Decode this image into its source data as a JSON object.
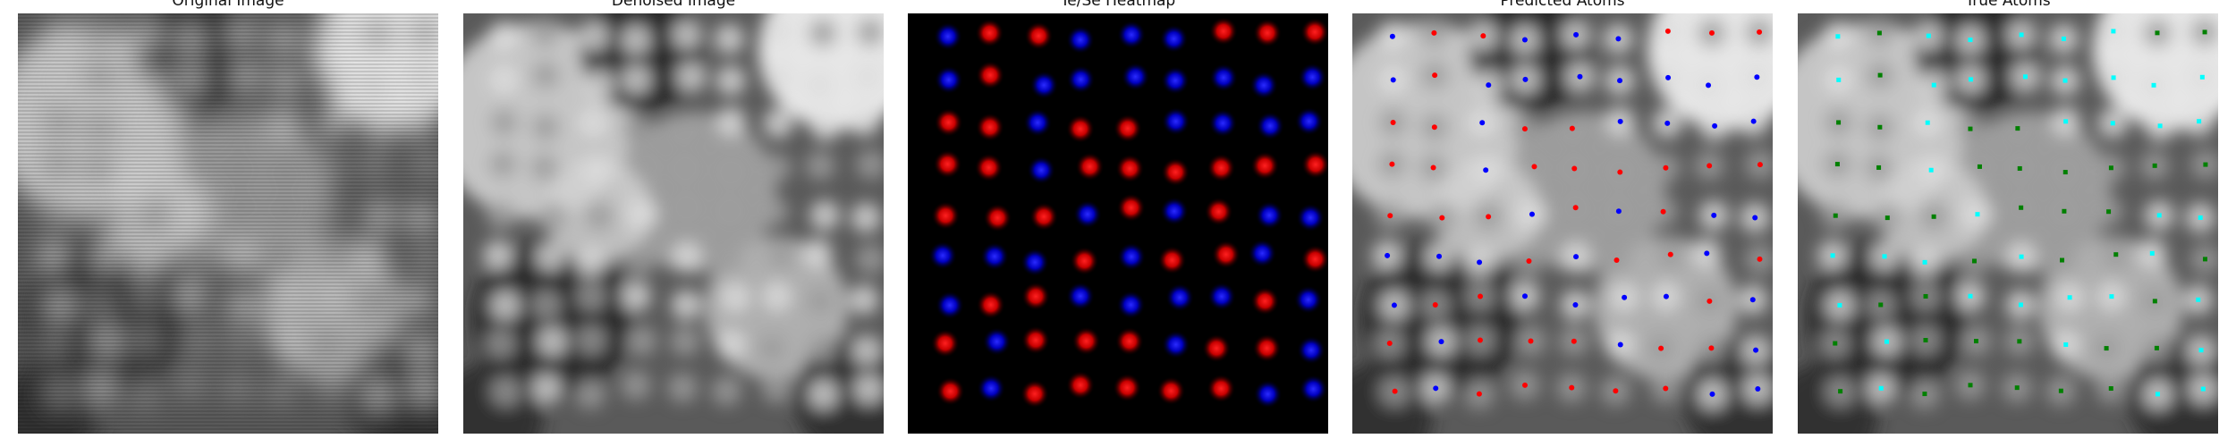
{
  "panels": [
    {
      "title": "Original Image",
      "kind": "original"
    },
    {
      "title": "Denoised Image",
      "kind": "denoised"
    },
    {
      "title": "Te/Se Heatmap",
      "kind": "heatmap"
    },
    {
      "title": "Predicted Atoms",
      "kind": "predicted"
    },
    {
      "title": "True Atoms",
      "kind": "truth"
    }
  ],
  "colors": {
    "te": "#ff0000",
    "se": "#0000ff",
    "true_te": "#00ffff",
    "true_se": "#008000",
    "heatmap_bg": "#000000"
  },
  "lattice": {
    "rows": 9,
    "cols": 9,
    "predicted_labels": [
      "BRRBBBRRR",
      "BRBBBBBBB",
      "RRBRRBBBB",
      "RRBRRRRRR",
      "RRRBRBRBB",
      "BBBRBRRBR",
      "BRRBBBBRB",
      "RBRRRBRRB",
      "RBRRRRRBB"
    ],
    "true_labels": [
      "CGCCCCCGG",
      "CGCCCCCCC",
      "GGCGGCCCC",
      "GGCGGGGGG",
      "GGGCGGGCC",
      "CCCGCGGCG",
      "CGGCCCCGC",
      "GCGGGCGGC",
      "GCGGGGGCC"
    ]
  }
}
